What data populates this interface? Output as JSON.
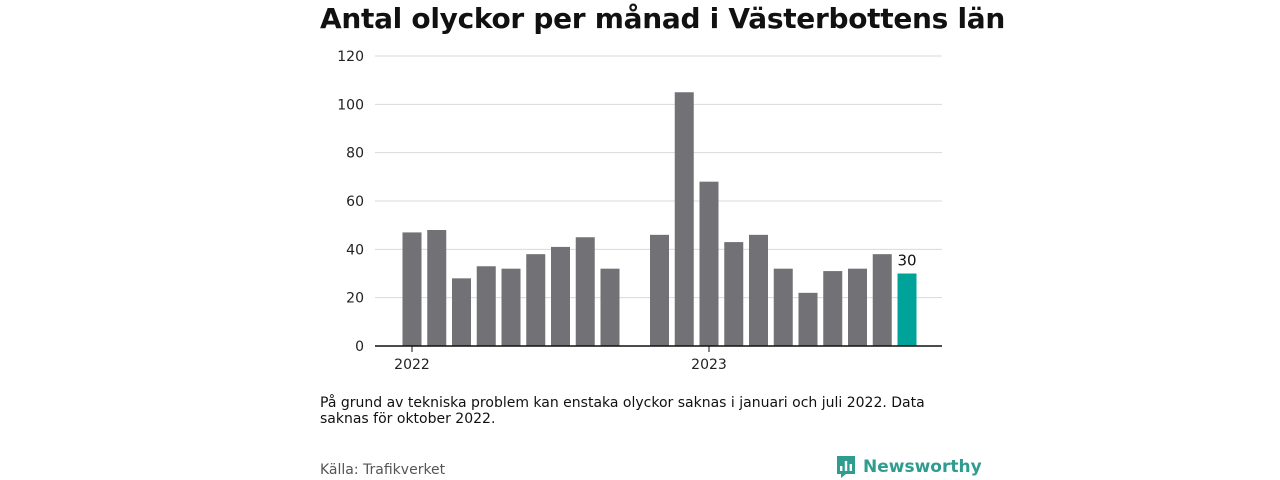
{
  "title": "Antal olyckor per månad i Västerbottens län",
  "note": "På grund av tekniska problem kan enstaka olyckor saknas i januari och juli 2022. Data saknas för oktober 2022.",
  "source": "Källa: Trafikverket",
  "brand": {
    "name": "Newsworthy",
    "icon": "bar-chart-speech-bubble-icon"
  },
  "colors": {
    "bar": "#727176",
    "highlight": "#00a399",
    "grid": "#d9d9d9",
    "axis": "#111111",
    "brand": "#2f9c8f"
  },
  "chart_data": {
    "type": "bar",
    "title": "Antal olyckor per månad i Västerbottens län",
    "xlabel": "",
    "ylabel": "",
    "ylim": [
      0,
      120
    ],
    "yticks": [
      0,
      20,
      40,
      60,
      80,
      100,
      120
    ],
    "grid": true,
    "x_tick_labels": [
      {
        "label": "2022",
        "at": "2022-01"
      },
      {
        "label": "2023",
        "at": "2023-01"
      }
    ],
    "categories": [
      "2022-01",
      "2022-02",
      "2022-03",
      "2022-04",
      "2022-05",
      "2022-06",
      "2022-07",
      "2022-08",
      "2022-09",
      "2022-10",
      "2022-11",
      "2022-12",
      "2023-01",
      "2023-02",
      "2023-03",
      "2023-04",
      "2023-05",
      "2023-06",
      "2023-07",
      "2023-08",
      "2023-09"
    ],
    "values": [
      47,
      48,
      28,
      33,
      32,
      38,
      41,
      45,
      32,
      null,
      46,
      105,
      68,
      43,
      46,
      32,
      22,
      31,
      32,
      38,
      30
    ],
    "highlight_index": 20,
    "data_labels": [
      {
        "index": 20,
        "text": "30"
      }
    ]
  }
}
